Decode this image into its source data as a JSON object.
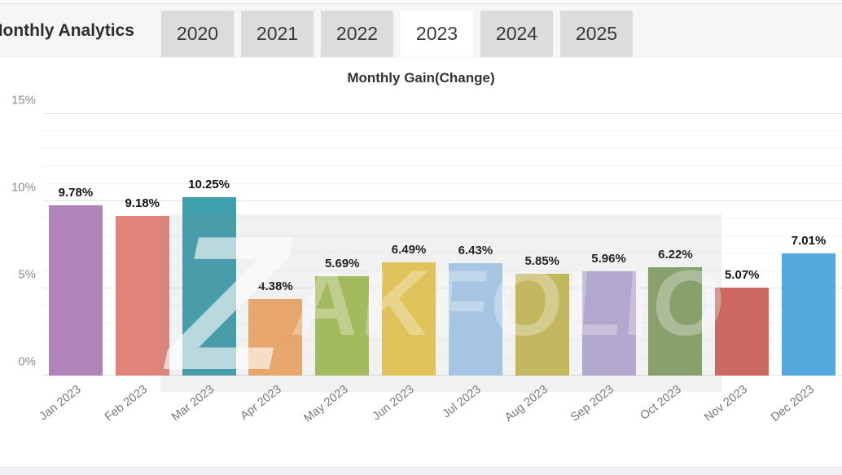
{
  "header": {
    "title": "Monthly Analytics",
    "tabs": [
      {
        "label": "2020",
        "selected": false
      },
      {
        "label": "2021",
        "selected": false
      },
      {
        "label": "2022",
        "selected": false
      },
      {
        "label": "2023",
        "selected": true
      },
      {
        "label": "2024",
        "selected": false
      },
      {
        "label": "2025",
        "selected": false
      }
    ]
  },
  "watermark": {
    "z_letter": "Z",
    "text_rest": "AKFOLIO"
  },
  "colors": {
    "tab_bg": "#dcdcde",
    "tab_selected_bg": "#ffffff",
    "header_bg": "#f6f6f8",
    "grid_major": "#e3e3e8",
    "grid_minor": "#f4f4f6"
  },
  "chart_data": {
    "type": "bar",
    "title": "Monthly Gain(Change)",
    "categories": [
      "Jan 2023",
      "Feb 2023",
      "Mar 2023",
      "Apr 2023",
      "May 2023",
      "Jun 2023",
      "Jul 2023",
      "Aug 2023",
      "Sep 2023",
      "Oct 2023",
      "Nov 2023",
      "Dec 2023"
    ],
    "values": [
      9.78,
      9.18,
      10.25,
      4.38,
      5.69,
      6.49,
      6.43,
      5.85,
      5.96,
      6.22,
      5.07,
      7.01
    ],
    "value_labels": [
      "9.78%",
      "9.18%",
      "10.25%",
      "4.38%",
      "5.69%",
      "6.49%",
      "6.43%",
      "5.85%",
      "5.96%",
      "6.22%",
      "5.07%",
      "7.01%"
    ],
    "bar_colors": [
      "#b184b9",
      "#e0837b",
      "#3f9fad",
      "#f4a967",
      "#a6c255",
      "#ecc952",
      "#a8cdee",
      "#c9bd55",
      "#b7aad4",
      "#87a366",
      "#cd6762",
      "#54aadf"
    ],
    "xlabel": "",
    "ylabel": "",
    "ylim": [
      0,
      15
    ],
    "y_ticks": [
      {
        "value": 0,
        "label": "0%"
      },
      {
        "value": 5,
        "label": "5%"
      },
      {
        "value": 10,
        "label": "10%"
      },
      {
        "value": 15,
        "label": "15%"
      }
    ],
    "minor_grid_step_pct": 1,
    "grid": true,
    "legend": false
  }
}
